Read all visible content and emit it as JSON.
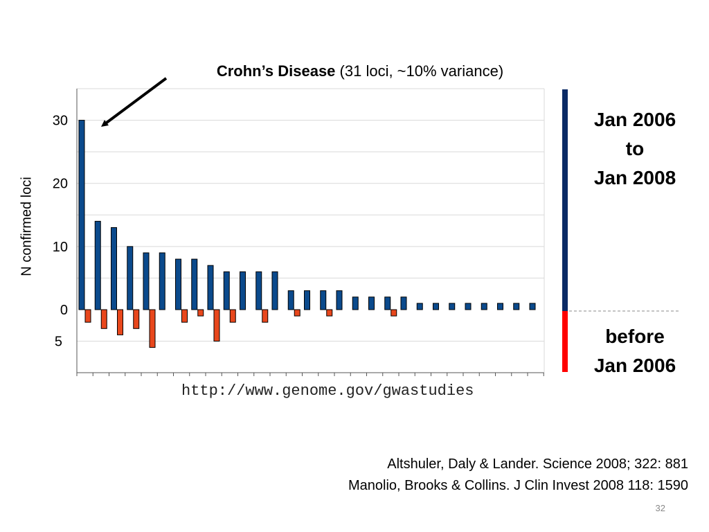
{
  "slide": {
    "title_bold": "Crohn’s Disease",
    "title_rest": " (31 loci, ~10% variance)",
    "source_url": "http://www.genome.gov/gwastudies",
    "period_new": [
      "Jan 2006",
      "to",
      "Jan 2008"
    ],
    "period_old": [
      "before",
      "Jan 2006"
    ],
    "citations": [
      "Altshuler, Daly & Lander. Science 2008; 322: 881",
      "Manolio, Brooks & Collins. J Clin Invest 2008 118: 1590"
    ],
    "page_number": "32"
  },
  "chart_data": {
    "type": "bar",
    "title": "Crohn’s Disease (31 loci, ~10% variance)",
    "ylabel": "N confirmed loci",
    "xlabel": "",
    "ylim_above": [
      0,
      35
    ],
    "ylim_below": [
      0,
      10
    ],
    "y_ticks_above": [
      0,
      10,
      20,
      30
    ],
    "y_ticks_below": [
      5
    ],
    "grid": true,
    "legend": "none",
    "n_diseases": 29,
    "series": [
      {
        "values": [
          30,
          14,
          13,
          10,
          9,
          9,
          8,
          8,
          7,
          6,
          6,
          6,
          6,
          3,
          3,
          3,
          3,
          2,
          2,
          2,
          2,
          1,
          1,
          1,
          1,
          1,
          1,
          1,
          1
        ]
      },
      {
        "values": [
          2,
          3,
          4,
          3,
          6,
          0,
          2,
          1,
          5,
          2,
          0,
          2,
          0,
          1,
          0,
          1,
          0,
          0,
          0,
          1,
          0,
          0,
          0,
          0,
          0,
          0,
          0,
          0,
          0
        ]
      }
    ],
    "colors": {
      "above": "#0b4a8c",
      "below": "#e8471c",
      "bar_new": "#0b2b66",
      "bar_old": "#ff0000"
    },
    "annotation": "arrow pointing to first bar"
  }
}
